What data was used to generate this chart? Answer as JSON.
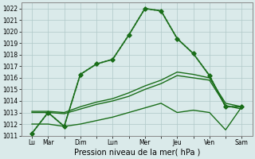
{
  "xlabel": "Pression niveau de la mer( hPa )",
  "background_color": "#daeaea",
  "grid_color": "#b0c8c8",
  "line_color": "#1a6e1a",
  "xlabels": [
    "Lu",
    "Mar",
    "",
    "Dim",
    "",
    "Lun",
    "",
    "Mer",
    "",
    "Jeu",
    "",
    "Ven",
    "",
    "Sam"
  ],
  "xtick_positions": [
    0,
    1,
    2,
    3,
    4,
    5,
    6,
    7,
    8,
    9,
    10,
    11,
    12,
    13
  ],
  "ylim": [
    1011,
    1022.5
  ],
  "yticks": [
    1011,
    1012,
    1013,
    1014,
    1015,
    1016,
    1017,
    1018,
    1019,
    1020,
    1021,
    1022
  ],
  "series": {
    "main_dotted": {
      "x": [
        0,
        1,
        2,
        3,
        4,
        5,
        6,
        7,
        8,
        9,
        10,
        11,
        12,
        13
      ],
      "y": [
        1011.2,
        1013.0,
        1011.8,
        1016.3,
        1017.2,
        1017.6,
        1019.7,
        1022.0,
        1021.8,
        1019.4,
        1018.1,
        1016.2,
        1013.5,
        1013.5
      ],
      "style": "dotted",
      "marker": "D",
      "markersize": 2.5,
      "linewidth": 1.2
    },
    "main_solid": {
      "x": [
        0,
        1,
        2,
        3,
        4,
        5,
        6,
        7,
        8,
        9,
        10,
        11,
        12,
        13
      ],
      "y": [
        1011.2,
        1013.0,
        1011.8,
        1016.3,
        1017.2,
        1017.6,
        1019.7,
        1022.0,
        1021.8,
        1019.4,
        1018.1,
        1016.2,
        1013.5,
        1013.5
      ],
      "style": "-",
      "marker": "D",
      "markersize": 2.5,
      "linewidth": 1.2
    },
    "upper_band": {
      "x": [
        0,
        1,
        2,
        3,
        4,
        5,
        6,
        7,
        8,
        9,
        10,
        11,
        12,
        13
      ],
      "y": [
        1013.1,
        1013.1,
        1013.0,
        1013.5,
        1013.9,
        1014.2,
        1014.7,
        1015.3,
        1015.8,
        1016.5,
        1016.3,
        1016.0,
        1013.8,
        1013.5
      ],
      "style": "-",
      "marker": "None",
      "linewidth": 1.0
    },
    "mid_band": {
      "x": [
        0,
        1,
        2,
        3,
        4,
        5,
        6,
        7,
        8,
        9,
        10,
        11,
        12,
        13
      ],
      "y": [
        1013.0,
        1013.0,
        1012.9,
        1013.3,
        1013.7,
        1014.0,
        1014.4,
        1015.0,
        1015.5,
        1016.2,
        1016.0,
        1015.8,
        1013.6,
        1013.3
      ],
      "style": "-",
      "marker": "None",
      "linewidth": 1.0
    },
    "lower_band": {
      "x": [
        0,
        1,
        2,
        3,
        4,
        5,
        6,
        7,
        8,
        9,
        10,
        11,
        12,
        13
      ],
      "y": [
        1012.0,
        1012.0,
        1011.8,
        1012.0,
        1012.3,
        1012.6,
        1013.0,
        1013.4,
        1013.8,
        1013.0,
        1013.2,
        1013.0,
        1011.5,
        1013.5
      ],
      "style": "-",
      "marker": "None",
      "linewidth": 1.0
    }
  }
}
